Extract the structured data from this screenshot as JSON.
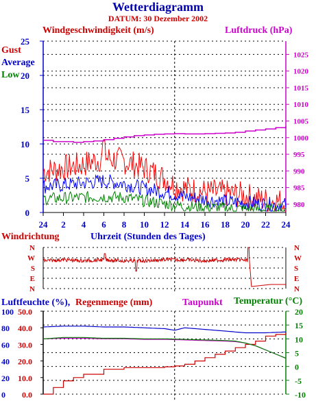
{
  "header": {
    "title": "Wetterdiagramm",
    "date": "DATUM: 30 Dezember 2002"
  },
  "labels": {
    "wind_title": "Windgeschwindigkeit (m/s)",
    "pressure_title": "Luftdruck (hPa)",
    "gust": "Gust",
    "average": "Average",
    "low": "Low",
    "wind_dir_title": "Windrichtung",
    "time_title": "Uhrzeit (Stunden des Tages)",
    "humidity_title": "Luftfeuchte (%),",
    "rain_title": "Regenmenge (mm)",
    "dewpoint_title": "Taupunkt",
    "temperature_title": "Temperatur (°C)"
  },
  "colors": {
    "gust": "#ff0000",
    "average": "#0000ff",
    "low": "#008000",
    "pressure": "#cc00cc",
    "wind_dir": "#cc0000",
    "humidity": "#0000cc",
    "rain": "#cc0000",
    "dewpoint": "#cc00cc",
    "temperature": "#008000",
    "axis_left": "#0000cc",
    "axis_right": "#cc00cc"
  },
  "chart_data": [
    {
      "type": "line",
      "title": "Windgeschwindigkeit (m/s)",
      "x_ticks": [
        "24",
        "2",
        "4",
        "6",
        "8",
        "10",
        "12",
        "14",
        "16",
        "18",
        "20",
        "22",
        "24"
      ],
      "x_range": [
        0,
        24
      ],
      "y_left": {
        "label": "Windgeschwindigkeit (m/s)",
        "range": [
          0,
          25
        ],
        "ticks": [
          "0",
          "5",
          "10",
          "15",
          "20",
          "25"
        ]
      },
      "y_right": {
        "label": "Luftdruck (hPa)",
        "range": [
          977.5,
          1029
        ],
        "ticks": [
          "980",
          "985",
          "990",
          "995",
          "1000",
          "1005",
          "1010",
          "1015",
          "1020",
          "1025"
        ]
      },
      "grid": true,
      "series": [
        {
          "name": "Gust",
          "axis": "left",
          "hours": [
            0,
            2,
            4,
            5,
            6,
            8,
            10,
            12,
            13,
            14,
            16,
            18,
            20,
            21,
            22,
            24
          ],
          "values": [
            6,
            6.5,
            7,
            7.5,
            8,
            7.5,
            6.5,
            5,
            4,
            3.5,
            3,
            2.8,
            2.5,
            2,
            1.8,
            1.5
          ]
        },
        {
          "name": "Average",
          "axis": "left",
          "hours": [
            0,
            2,
            4,
            6,
            8,
            10,
            12,
            14,
            16,
            18,
            20,
            22,
            24
          ],
          "values": [
            3.8,
            4,
            4.3,
            4.6,
            4.2,
            3.5,
            3,
            2.3,
            1.9,
            1.6,
            1.4,
            1.2,
            1.1
          ]
        },
        {
          "name": "Low",
          "axis": "left",
          "hours": [
            0,
            2,
            4,
            6,
            8,
            10,
            12,
            14,
            16,
            18,
            20,
            22,
            24
          ],
          "values": [
            2,
            2.1,
            2.2,
            2.3,
            2.2,
            1.7,
            1.3,
            0.9,
            0.7,
            0.6,
            0.5,
            0.4,
            0.4
          ]
        },
        {
          "name": "Luftdruck",
          "axis": "right",
          "hours": [
            0,
            1,
            2,
            3,
            4,
            5,
            6,
            7,
            8,
            9,
            10,
            11,
            12,
            13,
            14,
            15,
            16,
            17,
            18,
            19,
            20,
            21,
            22,
            23,
            24
          ],
          "values": [
            999.2,
            998.8,
            998.8,
            998.6,
            998.8,
            999,
            999.4,
            999.8,
            1000.2,
            1000.6,
            1000.8,
            1001,
            1001.1,
            1001.2,
            1001.1,
            1001.1,
            1001.2,
            1001.3,
            1001.4,
            1001.6,
            1002,
            1002.3,
            1002.6,
            1003,
            1003.5
          ]
        }
      ]
    },
    {
      "type": "line",
      "title": "Windrichtung",
      "x_range": [
        0,
        24
      ],
      "y_ticks": [
        "N",
        "W",
        "S",
        "E",
        "N"
      ],
      "series": [
        {
          "name": "Windrichtung",
          "hours": [
            0,
            2,
            4,
            6,
            8,
            10,
            12,
            14,
            16,
            18,
            19.5,
            20.4,
            20.6,
            22.5,
            24
          ],
          "values": [
            1.3,
            1.2,
            1.3,
            1.2,
            1.3,
            1.3,
            1.2,
            1.2,
            1.3,
            1.2,
            1.2,
            1.3,
            3.8,
            3.6,
            3.6
          ]
        }
      ]
    },
    {
      "type": "line",
      "title": "Luftfeuchte / Regenmenge / Taupunkt / Temperatur",
      "x_range": [
        0,
        24
      ],
      "y_left": {
        "label": "Luftfeuchte (%), Regenmenge (mm)",
        "humidity_ticks": [
          "0",
          "20",
          "40",
          "60",
          "80",
          "100"
        ],
        "rain_ticks": [
          "0.0",
          "10.0",
          "20.0",
          "30.0",
          "40.0",
          "50.0"
        ],
        "rain_range": [
          0,
          50
        ]
      },
      "y_right": {
        "label": "Temperatur (°C)",
        "range": [
          -10,
          20
        ],
        "ticks": [
          "20",
          "15",
          "10",
          "5",
          "0",
          "-5",
          "-10"
        ]
      },
      "series": [
        {
          "name": "Luftfeuchte",
          "axis": "left",
          "hours": [
            0,
            2,
            4,
            6,
            8,
            10,
            12,
            13,
            14,
            16,
            18,
            20,
            22,
            24
          ],
          "values": [
            81,
            82,
            82,
            81,
            81,
            80,
            79,
            77,
            80,
            78,
            76,
            74,
            74,
            75
          ]
        },
        {
          "name": "Regenmenge",
          "axis": "left",
          "hours": [
            0,
            1,
            2,
            3,
            4,
            6,
            8,
            10,
            12,
            13,
            14,
            15,
            16,
            17,
            18,
            19,
            20,
            21,
            22,
            23,
            24
          ],
          "values": [
            0,
            4,
            8,
            10,
            12,
            15,
            16,
            16,
            16.5,
            17,
            18,
            20,
            22,
            24,
            26,
            28,
            30,
            32,
            35,
            36,
            37
          ]
        },
        {
          "name": "Taupunkt",
          "axis": "right",
          "hours": [
            0,
            2,
            4,
            6,
            8,
            10,
            12,
            14,
            16,
            18,
            19,
            20,
            21,
            22,
            23,
            24
          ],
          "values": [
            10,
            10.2,
            10.2,
            10,
            10,
            9.8,
            9.8,
            9.6,
            9.4,
            9.2,
            9,
            8.5,
            7.5,
            6,
            4.5,
            3
          ]
        },
        {
          "name": "Temperatur",
          "axis": "right",
          "hours": [
            0,
            2,
            4,
            6,
            8,
            10,
            12,
            14,
            16,
            18,
            19,
            20,
            21,
            22,
            23,
            24
          ],
          "values": [
            10,
            10.5,
            10.5,
            10.2,
            10.2,
            10,
            10,
            9.8,
            9.6,
            9.4,
            9.2,
            8.5,
            7.5,
            6,
            4.5,
            3
          ]
        }
      ]
    }
  ]
}
